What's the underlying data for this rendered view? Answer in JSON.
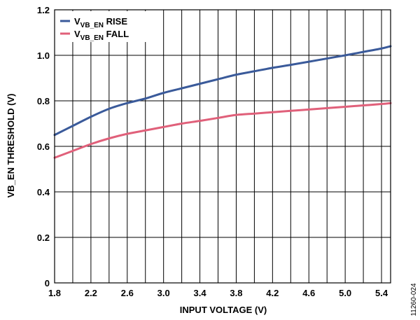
{
  "figure_id": "11260-024",
  "chart_data": {
    "type": "line",
    "xlabel": "INPUT VOLTAGE (V)",
    "ylabel": "VB_EN THRESHOLD (V)",
    "xlim": [
      1.8,
      5.5
    ],
    "ylim": [
      0,
      1.2
    ],
    "x_ticks": [
      "1.8",
      "2.2",
      "2.6",
      "3.0",
      "3.4",
      "3.8",
      "4.2",
      "4.6",
      "5.0",
      "5.4"
    ],
    "y_ticks": [
      "0",
      "0.2",
      "0.4",
      "0.6",
      "0.8",
      "1.0",
      "1.2"
    ],
    "grid": true,
    "legend_position": "top-left",
    "series": [
      {
        "name": "V_VB_EN RISE",
        "legend_main": "V",
        "legend_sub": "VB_EN",
        "legend_suffix": " RISE",
        "color": "#3a5a9a",
        "points": [
          [
            1.8,
            0.65
          ],
          [
            2.0,
            0.69
          ],
          [
            2.2,
            0.73
          ],
          [
            2.4,
            0.765
          ],
          [
            2.6,
            0.79
          ],
          [
            2.8,
            0.81
          ],
          [
            3.0,
            0.835
          ],
          [
            3.2,
            0.855
          ],
          [
            3.4,
            0.875
          ],
          [
            3.6,
            0.895
          ],
          [
            3.8,
            0.915
          ],
          [
            4.0,
            0.93
          ],
          [
            4.2,
            0.945
          ],
          [
            4.4,
            0.958
          ],
          [
            4.6,
            0.972
          ],
          [
            4.8,
            0.986
          ],
          [
            5.0,
            1.0
          ],
          [
            5.2,
            1.015
          ],
          [
            5.4,
            1.03
          ],
          [
            5.5,
            1.04
          ]
        ]
      },
      {
        "name": "V_VB_EN FALL",
        "legend_main": "V",
        "legend_sub": "VB_EN",
        "legend_suffix": " FALL",
        "color": "#e0607a",
        "points": [
          [
            1.8,
            0.55
          ],
          [
            2.0,
            0.58
          ],
          [
            2.2,
            0.61
          ],
          [
            2.4,
            0.635
          ],
          [
            2.6,
            0.655
          ],
          [
            2.8,
            0.67
          ],
          [
            3.0,
            0.685
          ],
          [
            3.2,
            0.7
          ],
          [
            3.4,
            0.712
          ],
          [
            3.6,
            0.725
          ],
          [
            3.8,
            0.738
          ],
          [
            4.0,
            0.744
          ],
          [
            4.2,
            0.75
          ],
          [
            4.4,
            0.756
          ],
          [
            4.6,
            0.762
          ],
          [
            4.8,
            0.768
          ],
          [
            5.0,
            0.774
          ],
          [
            5.2,
            0.78
          ],
          [
            5.4,
            0.786
          ],
          [
            5.5,
            0.79
          ]
        ]
      }
    ]
  }
}
